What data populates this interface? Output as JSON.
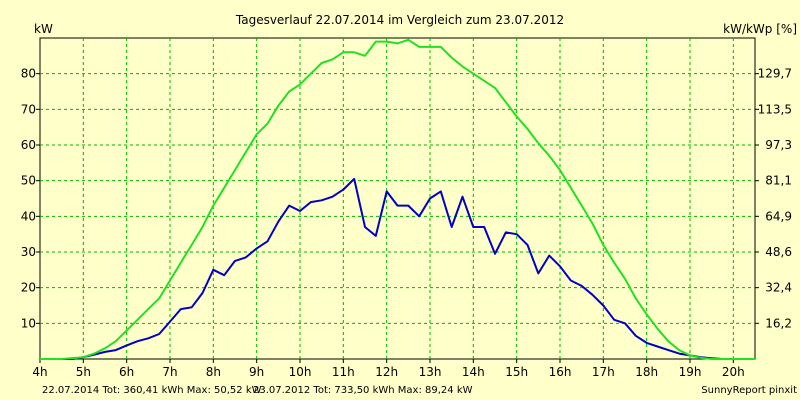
{
  "chart_data": {
    "type": "line",
    "title": "Tagesverlauf 22.07.2014 im Vergleich zum 23.07.2012",
    "ylabel_left": "kW",
    "ylabel_right": "kW/kWp [%]",
    "x_ticks": [
      "4h",
      "5h",
      "6h",
      "7h",
      "8h",
      "9h",
      "10h",
      "11h",
      "12h",
      "13h",
      "14h",
      "15h",
      "16h",
      "17h",
      "18h",
      "19h",
      "20h"
    ],
    "xlim": [
      4,
      20.5
    ],
    "ylim": [
      0,
      90
    ],
    "y_ticks_left": [
      "10",
      "20",
      "30",
      "40",
      "50",
      "60",
      "70",
      "80"
    ],
    "y_ticks_right": [
      "16,2",
      "32,4",
      "48,6",
      "64,9",
      "81,1",
      "97,3",
      "113,5",
      "129,7"
    ],
    "grid": true,
    "footer": {
      "s1_text": "22.07.2014 Tot: 360,41 kWh Max: 50,52 kW",
      "s2_text": "23.07.2012 Tot: 733,50 kWh Max: 89,24 kW",
      "credit": "SunnyReport pinxit"
    },
    "series": [
      {
        "color": "#0000c8",
        "x": [
          4,
          4.5,
          4.75,
          5,
          5.25,
          5.5,
          5.75,
          6,
          6.25,
          6.5,
          6.75,
          7,
          7.25,
          7.5,
          7.75,
          8,
          8.25,
          8.5,
          8.75,
          9,
          9.25,
          9.5,
          9.75,
          10,
          10.25,
          10.5,
          10.75,
          11,
          11.25,
          11.5,
          11.75,
          12,
          12.25,
          12.5,
          12.75,
          13,
          13.25,
          13.5,
          13.75,
          14,
          14.25,
          14.5,
          14.75,
          15,
          15.25,
          15.5,
          15.75,
          16,
          16.25,
          16.5,
          16.75,
          17,
          17.25,
          17.5,
          17.75,
          18,
          18.25,
          18.5,
          18.75,
          19,
          19.25,
          19.5,
          19.75,
          20,
          20.5
        ],
        "y": [
          0,
          0,
          0,
          0.5,
          1.2,
          2,
          2.5,
          3.8,
          5,
          5.8,
          7,
          10.5,
          14,
          14.5,
          18.5,
          25,
          23.5,
          27.5,
          28.5,
          31,
          33,
          38.5,
          43,
          41.5,
          44,
          44.5,
          45.5,
          47.5,
          50.5,
          37,
          34.5,
          47,
          43,
          43,
          40,
          45,
          47,
          37,
          45.5,
          37,
          37,
          29.5,
          35.5,
          35,
          32,
          24,
          29,
          26,
          22,
          20.5,
          18,
          15,
          11,
          10,
          6.5,
          4.5,
          3.5,
          2.5,
          1.5,
          1,
          0.5,
          0.2,
          0,
          0,
          0
        ]
      },
      {
        "color": "#22e022",
        "x": [
          4,
          4.5,
          5,
          5.25,
          5.5,
          5.75,
          6,
          6.25,
          6.5,
          6.75,
          7,
          7.25,
          7.5,
          7.75,
          8,
          8.25,
          8.5,
          8.75,
          9,
          9.25,
          9.5,
          9.75,
          10,
          10.25,
          10.5,
          10.75,
          11,
          11.25,
          11.5,
          11.75,
          12,
          12.25,
          12.5,
          12.75,
          13,
          13.25,
          13.5,
          13.75,
          14,
          14.25,
          14.5,
          14.75,
          15,
          15.25,
          15.5,
          15.75,
          16,
          16.25,
          16.5,
          16.75,
          17,
          17.25,
          17.5,
          17.75,
          18,
          18.25,
          18.5,
          18.75,
          19,
          19.25,
          19.5,
          19.75,
          20,
          20.5
        ],
        "y": [
          0,
          0,
          0.5,
          1.5,
          3,
          5,
          8,
          11,
          14,
          17,
          22,
          27,
          32,
          37,
          43,
          48,
          53,
          58,
          63,
          66,
          71,
          75,
          77,
          80,
          83,
          84,
          86,
          86,
          85,
          89,
          89,
          88.5,
          89.5,
          87.5,
          87.5,
          87.5,
          84.5,
          82,
          80,
          78,
          76,
          72,
          68,
          64.5,
          60.5,
          57,
          53,
          48,
          43,
          38,
          32,
          27,
          22.5,
          17,
          12.5,
          8.5,
          5,
          2.5,
          1,
          0.3,
          0,
          0,
          0,
          0
        ]
      }
    ]
  }
}
